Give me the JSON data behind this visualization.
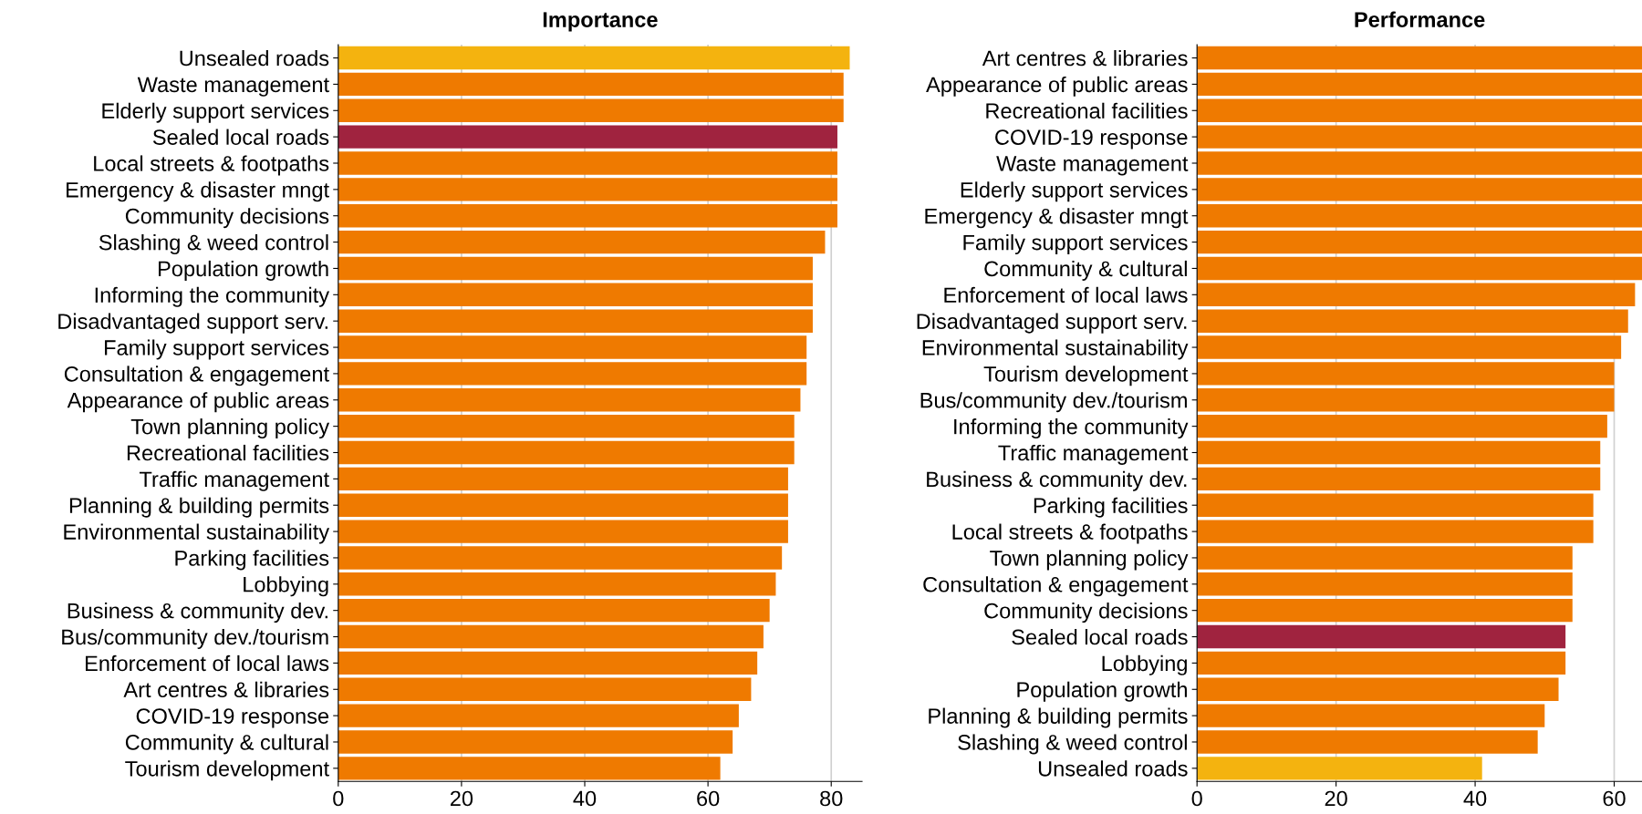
{
  "chart_data": [
    {
      "type": "bar",
      "orientation": "horizontal",
      "title": "Importance",
      "grid": "x",
      "categories": [
        "Unsealed roads",
        "Waste management",
        "Elderly support services",
        "Sealed local roads",
        "Local streets & footpaths",
        "Emergency & disaster mngt",
        "Community decisions",
        "Slashing & weed control",
        "Population growth",
        "Informing the community",
        "Disadvantaged support serv.",
        "Family support services",
        "Consultation & engagement",
        "Appearance of public areas",
        "Town planning policy",
        "Recreational facilities",
        "Traffic management",
        "Planning & building permits",
        "Environmental sustainability",
        "Parking facilities",
        "Lobbying",
        "Business & community dev.",
        "Bus/community dev./tourism",
        "Enforcement of local laws",
        "Art centres & libraries",
        "COVID-19 response",
        "Community & cultural",
        "Tourism development"
      ],
      "values": [
        83,
        82,
        82,
        81,
        81,
        81,
        81,
        79,
        77,
        77,
        77,
        76,
        76,
        75,
        74,
        74,
        73,
        73,
        73,
        72,
        71,
        70,
        69,
        68,
        67,
        65,
        64,
        62
      ],
      "colors": [
        "#f4b30f",
        "#ef7a00",
        "#ef7a00",
        "#a0233f",
        "#ef7a00",
        "#ef7a00",
        "#ef7a00",
        "#ef7a00",
        "#ef7a00",
        "#ef7a00",
        "#ef7a00",
        "#ef7a00",
        "#ef7a00",
        "#ef7a00",
        "#ef7a00",
        "#ef7a00",
        "#ef7a00",
        "#ef7a00",
        "#ef7a00",
        "#ef7a00",
        "#ef7a00",
        "#ef7a00",
        "#ef7a00",
        "#ef7a00",
        "#ef7a00",
        "#ef7a00",
        "#ef7a00",
        "#ef7a00"
      ],
      "xlim": [
        0,
        85
      ],
      "xticks": [
        0,
        20,
        40,
        60,
        80
      ]
    },
    {
      "type": "bar",
      "orientation": "horizontal",
      "title": "Performance",
      "grid": "x",
      "categories": [
        "Art centres & libraries",
        "Appearance of public areas",
        "Recreational facilities",
        "COVID-19 response",
        "Waste management",
        "Elderly support services",
        "Emergency & disaster mngt",
        "Family support services",
        "Community & cultural",
        "Enforcement of local laws",
        "Disadvantaged support serv.",
        "Environmental sustainability",
        "Tourism development",
        "Bus/community dev./tourism",
        "Informing the community",
        "Traffic management",
        "Business & community dev.",
        "Parking facilities",
        "Local streets & footpaths",
        "Town planning policy",
        "Consultation & engagement",
        "Community decisions",
        "Sealed local roads",
        "Lobbying",
        "Population growth",
        "Planning & building permits",
        "Slashing & weed control",
        "Unsealed roads"
      ],
      "values": [
        64,
        64,
        64,
        64,
        64,
        64,
        64,
        64,
        64,
        63,
        62,
        61,
        60,
        60,
        59,
        58,
        58,
        57,
        57,
        54,
        54,
        54,
        53,
        53,
        52,
        50,
        49,
        41
      ],
      "colors": [
        "#ef7a00",
        "#ef7a00",
        "#ef7a00",
        "#ef7a00",
        "#ef7a00",
        "#ef7a00",
        "#ef7a00",
        "#ef7a00",
        "#ef7a00",
        "#ef7a00",
        "#ef7a00",
        "#ef7a00",
        "#ef7a00",
        "#ef7a00",
        "#ef7a00",
        "#ef7a00",
        "#ef7a00",
        "#ef7a00",
        "#ef7a00",
        "#ef7a00",
        "#ef7a00",
        "#ef7a00",
        "#a0233f",
        "#ef7a00",
        "#ef7a00",
        "#ef7a00",
        "#ef7a00",
        "#f4b30f"
      ],
      "xlim": [
        0,
        64
      ],
      "xticks": [
        0,
        20,
        40,
        60
      ]
    }
  ]
}
